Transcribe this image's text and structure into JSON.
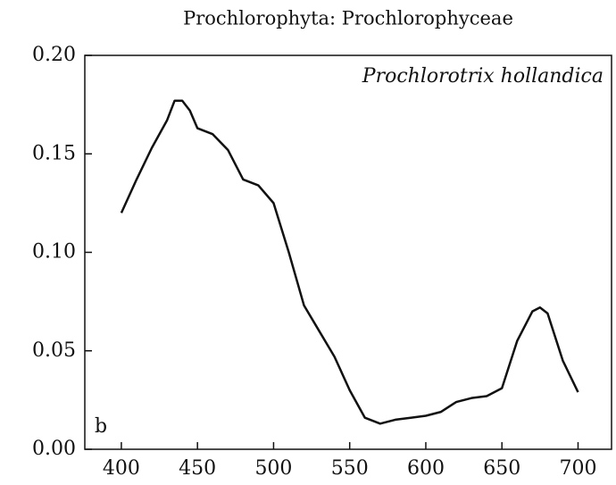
{
  "chart_data": {
    "type": "line",
    "title": "Prochlorophyta: Prochlorophyceae",
    "annotations": [
      "Prochlorotrix hollandica",
      "b"
    ],
    "x": [
      400,
      410,
      420,
      430,
      435,
      440,
      445,
      450,
      460,
      470,
      480,
      490,
      500,
      510,
      520,
      530,
      540,
      550,
      560,
      570,
      580,
      590,
      600,
      610,
      620,
      630,
      640,
      650,
      660,
      670,
      675,
      680,
      690,
      700
    ],
    "series": [
      {
        "color": "#111111",
        "values": [
          0.12,
          0.137,
          0.153,
          0.167,
          0.177,
          0.177,
          0.172,
          0.163,
          0.16,
          0.152,
          0.137,
          0.134,
          0.125,
          0.1,
          0.073,
          0.06,
          0.047,
          0.03,
          0.016,
          0.013,
          0.015,
          0.016,
          0.017,
          0.019,
          0.024,
          0.026,
          0.027,
          0.031,
          0.055,
          0.07,
          0.072,
          0.069,
          0.045,
          0.029
        ]
      }
    ],
    "xlim": [
      376,
      722
    ],
    "ylim": [
      0,
      0.2
    ],
    "xticks": [
      400,
      450,
      500,
      550,
      600,
      650,
      700
    ],
    "yticks": [
      {
        "value": 0,
        "label": "0.00"
      },
      0.05,
      {
        "value": 0.1,
        "label": "0.10"
      },
      0.15,
      {
        "value": 0.2,
        "label": "0.20"
      }
    ]
  }
}
